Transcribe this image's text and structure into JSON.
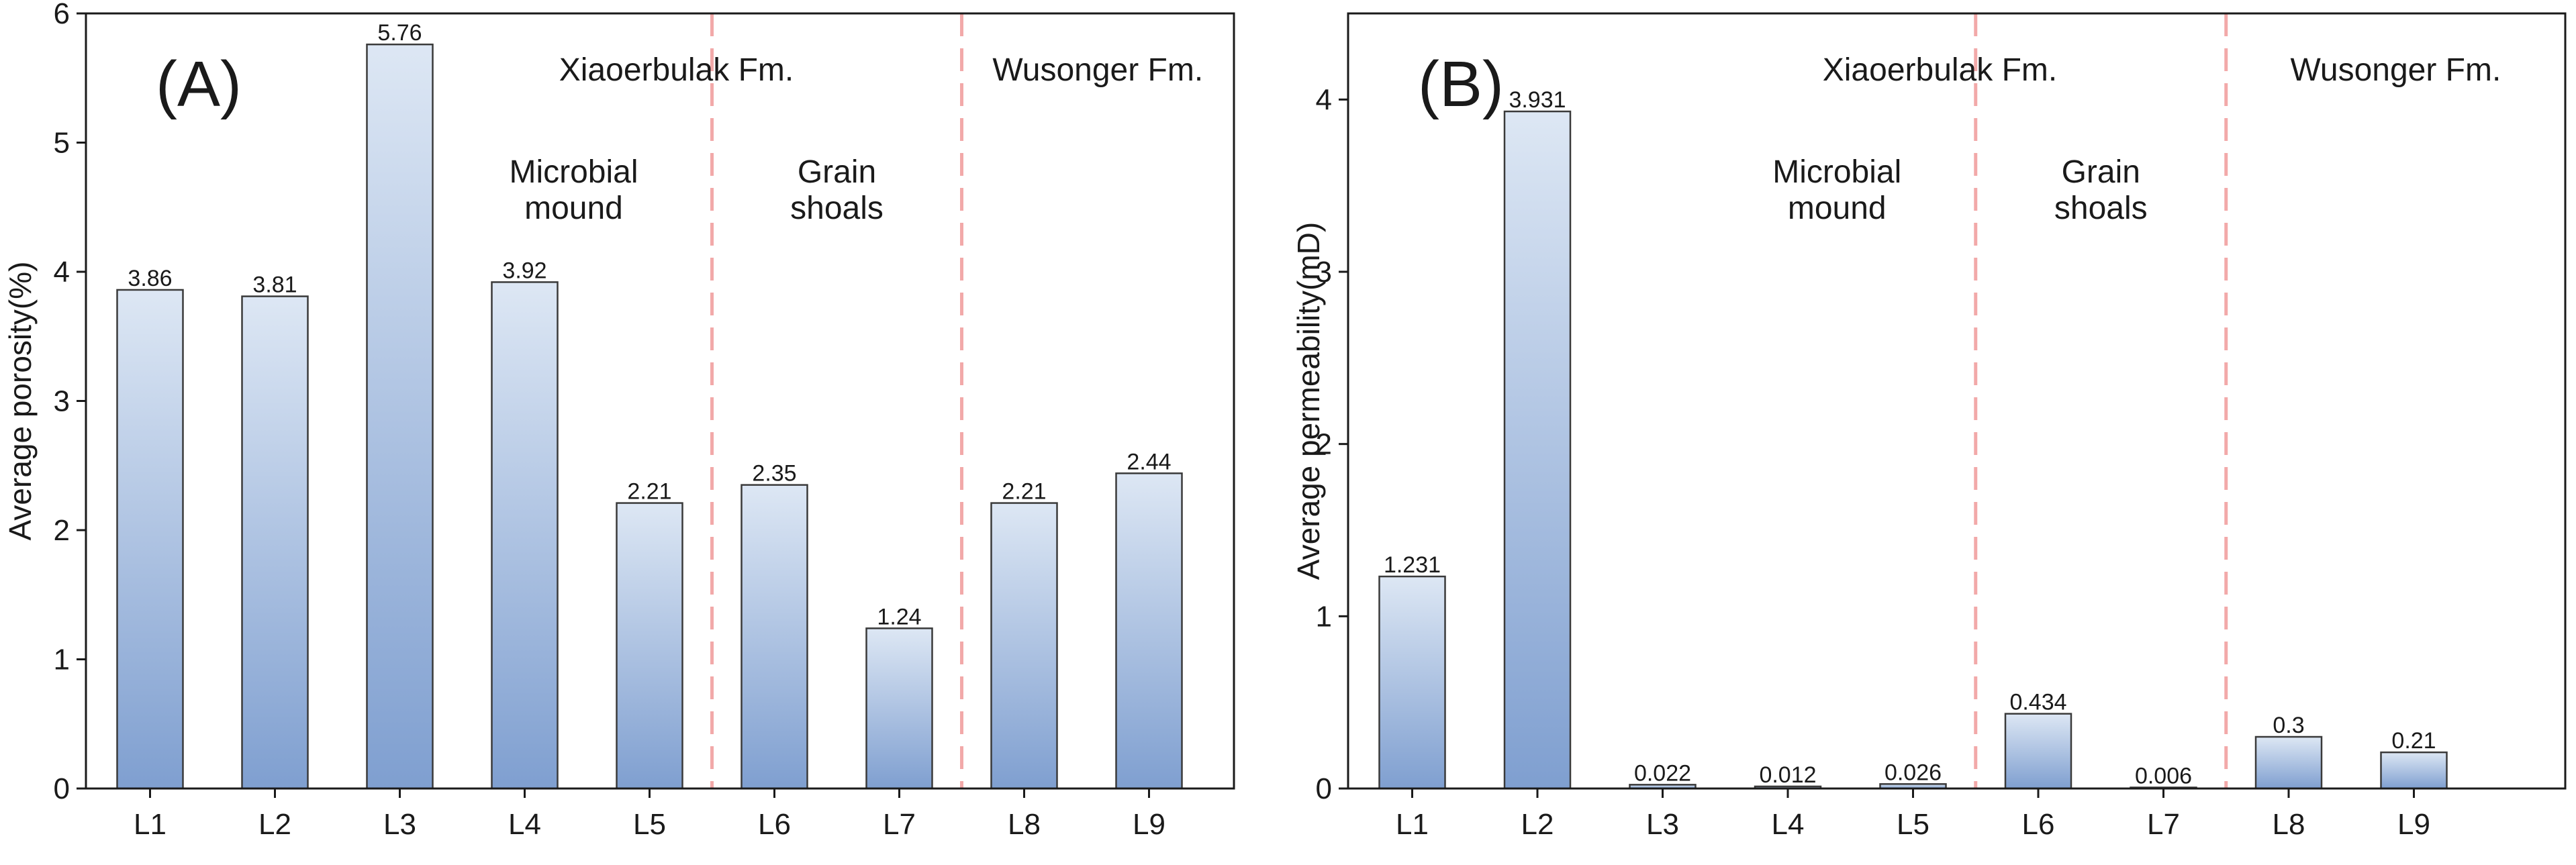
{
  "chart_data": [
    {
      "type": "bar",
      "panel": "(A)",
      "categories": [
        "L1",
        "L2",
        "L3",
        "L4",
        "L5",
        "L6",
        "L7",
        "L8",
        "L9"
      ],
      "values": [
        3.86,
        3.81,
        5.76,
        3.92,
        2.21,
        2.35,
        1.24,
        2.21,
        2.44
      ],
      "value_labels": [
        "3.86",
        "3.81",
        "5.76",
        "3.92",
        "2.21",
        "2.35",
        "1.24",
        "2.21",
        "2.44"
      ],
      "ylabel": "Average porosity(%)",
      "xlabel": "",
      "ylim": [
        0,
        6
      ],
      "yticks": [
        0,
        1,
        2,
        3,
        4,
        5,
        6
      ],
      "ytick_labels": [
        "0",
        "1",
        "2",
        "3",
        "4",
        "5",
        "6"
      ],
      "formation_labels": [
        "Xiaoerbulak Fm.",
        "Wusonger Fm."
      ],
      "facies_labels": [
        {
          "lines": [
            "Microbial",
            "mound"
          ]
        },
        {
          "lines": [
            "Grain",
            "shoals"
          ]
        }
      ],
      "dividers_between": [
        [
          5,
          6
        ],
        [
          7,
          8
        ]
      ]
    },
    {
      "type": "bar",
      "panel": "(B)",
      "categories": [
        "L1",
        "L2",
        "L3",
        "L4",
        "L5",
        "L6",
        "L7",
        "L8",
        "L9"
      ],
      "values": [
        1.231,
        3.931,
        0.022,
        0.012,
        0.026,
        0.434,
        0.006,
        0.3,
        0.21
      ],
      "value_labels": [
        "1.231",
        "3.931",
        "0.022",
        "0.012",
        "0.026",
        "0.434",
        "0.006",
        "0.3",
        "0.21"
      ],
      "ylabel": "Average permeability(mD)",
      "xlabel": "",
      "ylim": [
        0,
        4.5
      ],
      "yticks": [
        0,
        1,
        2,
        3,
        4
      ],
      "ytick_labels": [
        "0",
        "1",
        "2",
        "3",
        "4"
      ],
      "formation_labels": [
        "Xiaoerbulak Fm.",
        "Wusonger Fm."
      ],
      "facies_labels": [
        {
          "lines": [
            "Microbial",
            "mound"
          ]
        },
        {
          "lines": [
            "Grain",
            "shoals"
          ]
        }
      ],
      "dividers_between": [
        [
          5,
          6
        ],
        [
          7,
          8
        ]
      ]
    }
  ],
  "colors": {
    "bar_top": "#dde7f4",
    "bar_bottom": "#7f9fd0",
    "bar_stroke": "#3a3a3a",
    "divider": "#f2a9a9",
    "axis": "#1a1a1a"
  }
}
